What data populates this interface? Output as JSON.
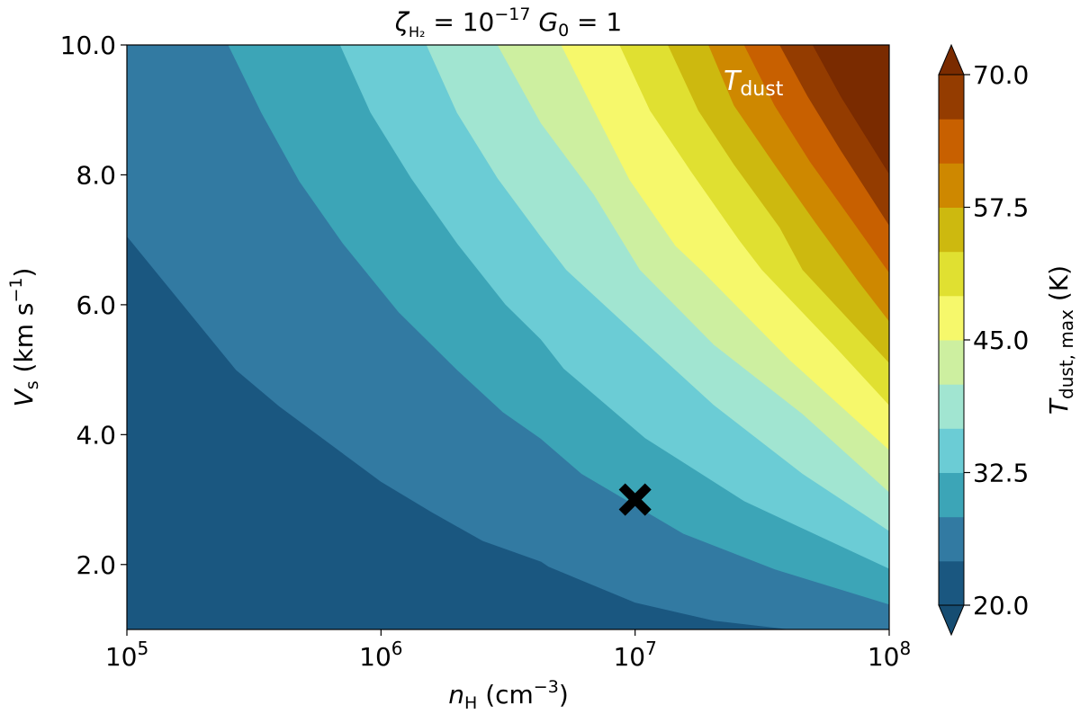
{
  "chart_data": {
    "type": "heatmap",
    "subtype": "filled-contour",
    "title": {
      "zeta": "ζ",
      "zeta_sub": "H₂",
      "eq1": " = 10",
      "exp": "−17",
      "g": "  G",
      "g_sub": "0",
      "eq2": " = 1"
    },
    "xlabel": {
      "var": "n",
      "sub": "H",
      "unit": " (cm",
      "exp": "−3",
      "close": ")"
    },
    "ylabel": {
      "var": "V",
      "sub": "s",
      "unit": " (km s",
      "exp": "−1",
      "close": ")"
    },
    "x_scale": "log",
    "xlim_log10": [
      5,
      8
    ],
    "ylim": [
      1,
      10
    ],
    "x_ticks": [
      {
        "base": "10",
        "exp": "5",
        "log": 5
      },
      {
        "base": "10",
        "exp": "6",
        "log": 6
      },
      {
        "base": "10",
        "exp": "7",
        "log": 7
      },
      {
        "base": "10",
        "exp": "8",
        "log": 8
      }
    ],
    "y_ticks": [
      {
        "label": "2.0",
        "v": 2
      },
      {
        "label": "4.0",
        "v": 4
      },
      {
        "label": "6.0",
        "v": 6
      },
      {
        "label": "8.0",
        "v": 8
      },
      {
        "label": "10.0",
        "v": 10
      }
    ],
    "annotation": {
      "var": "T",
      "sub": "dust",
      "color": "#ffffff"
    },
    "marker": {
      "log_n": 7.0,
      "v": 3.0,
      "symbol": "X",
      "color": "#000000"
    },
    "colorbar": {
      "label_var": "T",
      "label_sub": "dust, max",
      "label_unit": " (K)",
      "range": [
        20,
        70
      ],
      "ticks": [
        {
          "label": "20.0",
          "v": 20
        },
        {
          "label": "32.5",
          "v": 32.5
        },
        {
          "label": "45.0",
          "v": 45
        },
        {
          "label": "57.5",
          "v": 57.5
        },
        {
          "label": "70.0",
          "v": 70
        }
      ],
      "extend": "both",
      "under_color": "#164d72",
      "over_color": "#7a2b00"
    },
    "levels": [
      20,
      24.17,
      28.33,
      32.5,
      36.67,
      40.83,
      45,
      49.17,
      53.33,
      57.5,
      61.67,
      65.83,
      70
    ],
    "band_colors": [
      "#1a5780",
      "#327aa2",
      "#3ca5b7",
      "#6bccd5",
      "#a1e5d1",
      "#cdefa0",
      "#f6f86b",
      "#e0e031",
      "#cdb90f",
      "#ce8800",
      "#c86000",
      "#943c00",
      "#7a2b00"
    ],
    "contours": [
      {
        "level": 24.17,
        "points": [
          [
            5.0,
            7.06
          ],
          [
            5.43,
            5.0
          ],
          [
            5.6,
            4.44
          ],
          [
            6.0,
            3.28
          ],
          [
            6.2,
            2.81
          ],
          [
            6.4,
            2.37
          ],
          [
            6.63,
            2.05
          ],
          [
            6.66,
            1.97
          ],
          [
            7.0,
            1.42
          ],
          [
            7.31,
            1.14
          ],
          [
            7.62,
            1.0
          ]
        ]
      },
      {
        "level": 28.33,
        "points": [
          [
            5.4,
            10
          ],
          [
            5.53,
            8.96
          ],
          [
            5.68,
            7.9
          ],
          [
            5.85,
            6.95
          ],
          [
            6.07,
            5.89
          ],
          [
            6.3,
            5.0
          ],
          [
            6.48,
            4.35
          ],
          [
            6.63,
            3.94
          ],
          [
            6.79,
            3.4
          ],
          [
            7.19,
            2.48
          ],
          [
            7.55,
            1.93
          ],
          [
            8.0,
            1.39
          ]
        ]
      },
      {
        "level": 32.5,
        "points": [
          [
            5.84,
            10
          ],
          [
            5.96,
            8.96
          ],
          [
            6.12,
            7.95
          ],
          [
            6.3,
            6.95
          ],
          [
            6.49,
            6.01
          ],
          [
            6.63,
            5.47
          ],
          [
            6.72,
            5.02
          ],
          [
            7.04,
            3.95
          ],
          [
            7.43,
            2.98
          ],
          [
            7.78,
            2.34
          ],
          [
            8.0,
            1.94
          ]
        ]
      },
      {
        "level": 36.67,
        "points": [
          [
            6.18,
            10
          ],
          [
            6.3,
            8.96
          ],
          [
            6.46,
            7.95
          ],
          [
            6.63,
            7.05
          ],
          [
            6.73,
            6.54
          ],
          [
            6.96,
            5.71
          ],
          [
            7.31,
            4.46
          ],
          [
            7.66,
            3.4
          ],
          [
            8.0,
            2.52
          ]
        ]
      },
      {
        "level": 40.83,
        "points": [
          [
            6.46,
            10
          ],
          [
            6.63,
            8.8
          ],
          [
            6.84,
            7.69
          ],
          [
            7.02,
            6.54
          ],
          [
            7.31,
            5.39
          ],
          [
            7.66,
            4.32
          ],
          [
            8.0,
            3.12
          ]
        ]
      },
      {
        "level": 45,
        "points": [
          [
            6.71,
            10
          ],
          [
            6.84,
            8.99
          ],
          [
            6.98,
            7.92
          ],
          [
            7.16,
            6.91
          ],
          [
            7.26,
            6.54
          ],
          [
            7.61,
            5.15
          ],
          [
            8.0,
            3.77
          ]
        ]
      },
      {
        "level": 49.17,
        "points": [
          [
            6.94,
            10
          ],
          [
            7.06,
            8.99
          ],
          [
            7.22,
            8.06
          ],
          [
            7.41,
            7.0
          ],
          [
            7.5,
            6.54
          ],
          [
            7.78,
            5.39
          ],
          [
            8.0,
            4.46
          ]
        ]
      },
      {
        "level": 53.33,
        "points": [
          [
            7.13,
            10
          ],
          [
            7.25,
            8.99
          ],
          [
            7.39,
            8.16
          ],
          [
            7.57,
            7.19
          ],
          [
            7.66,
            6.54
          ],
          [
            8.0,
            5.11
          ]
        ]
      },
      {
        "level": 57.5,
        "points": [
          [
            7.29,
            10
          ],
          [
            7.39,
            9.07
          ],
          [
            7.55,
            8.16
          ],
          [
            7.71,
            7.27
          ],
          [
            7.88,
            6.36
          ],
          [
            8.0,
            5.75
          ]
        ]
      },
      {
        "level": 61.67,
        "points": [
          [
            7.43,
            10
          ],
          [
            7.55,
            9.07
          ],
          [
            7.69,
            8.2
          ],
          [
            7.86,
            7.27
          ],
          [
            8.0,
            6.5
          ]
        ]
      },
      {
        "level": 65.83,
        "points": [
          [
            7.57,
            10
          ],
          [
            7.68,
            9.21
          ],
          [
            7.81,
            8.38
          ],
          [
            8.0,
            7.23
          ]
        ]
      },
      {
        "level": 70,
        "points": [
          [
            7.7,
            10
          ],
          [
            7.81,
            9.21
          ],
          [
            8.0,
            8.02
          ]
        ]
      }
    ]
  }
}
